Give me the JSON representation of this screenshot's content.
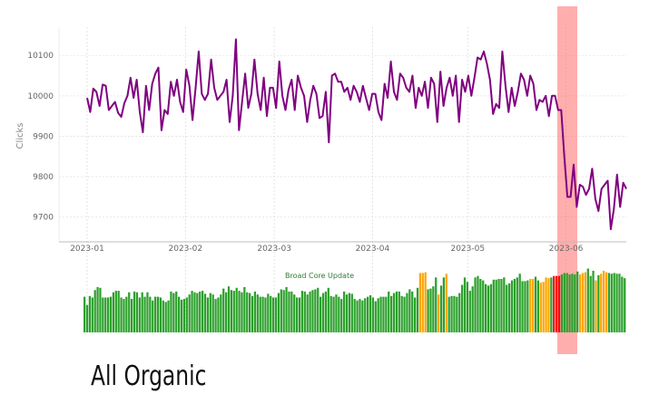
{
  "caption": "All Organic",
  "chart_data": [
    {
      "type": "line",
      "ylabel": "Clicks",
      "ylim": [
        9650,
        10170
      ],
      "yticks": [
        9700,
        9800,
        9900,
        10000,
        10100
      ],
      "xticks": [
        "2023-01",
        "2023-02",
        "2023-03",
        "2023-04",
        "2023-05",
        "2023-06"
      ],
      "x_start": "2023-01-01",
      "x_end": "2023-06-20",
      "grid": true,
      "line_color": "#800080",
      "highlight": {
        "start": "2023-06-01",
        "end": "2023-06-06",
        "color": "#ff6b6b"
      },
      "series": [
        {
          "values": [
            9995,
            9960,
            10018,
            10010,
            9975,
            10028,
            10025,
            9965,
            9975,
            9985,
            9958,
            9948,
            9982,
            10000,
            10045,
            9995,
            10040,
            9960,
            9910,
            10025,
            9965,
            10030,
            10055,
            10070,
            9915,
            9965,
            9955,
            10035,
            10000,
            10040,
            9985,
            9960,
            10065,
            10025,
            9940,
            10020,
            10110,
            10005,
            9990,
            10005,
            10090,
            10020,
            9990,
            10000,
            10010,
            10040,
            9935,
            10000,
            10140,
            9915,
            9985,
            10055,
            9970,
            10005,
            10090,
            10005,
            9965,
            10045,
            9950,
            10020,
            10020,
            9970,
            10085,
            10000,
            9965,
            10015,
            10040,
            9965,
            10050,
            10020,
            10000,
            9935,
            9990,
            10025,
            10005,
            9945,
            9950,
            10010,
            9885,
            10050,
            10055,
            10035,
            10035,
            10010,
            10020,
            9990,
            10025,
            10010,
            9985,
            10025,
            9995,
            9965,
            10005,
            10005,
            9960,
            9940,
            10030,
            9995,
            10085,
            10010,
            9990,
            10055,
            10045,
            10020,
            10010,
            10050,
            9970,
            10020,
            10000,
            10035,
            9970,
            10045,
            10030,
            9935,
            10060,
            9975,
            10020,
            10045,
            10000,
            10050,
            9935,
            10040,
            10010,
            10050,
            10000,
            10045,
            10095,
            10090,
            10110,
            10080,
            10040,
            9955,
            9980,
            9970,
            10110,
            10025,
            9960,
            10020,
            9975,
            10010,
            10055,
            10040,
            10000,
            10050,
            10030,
            9965,
            9990,
            9985,
            10000,
            9950,
            10000,
            10000,
            9965,
            9965,
            9850,
            9750,
            9750,
            9830,
            9725,
            9780,
            9775,
            9755,
            9770,
            9820,
            9745,
            9715,
            9770,
            9780,
            9790,
            9670,
            9720,
            9805,
            9725,
            9785,
            9770
          ]
        }
      ]
    },
    {
      "type": "bar",
      "annotation": "Broad Core Update",
      "colors": {
        "normal": "#2ca02c",
        "update": "#ffa500",
        "event": "#ff0000"
      },
      "note_levels": "values are relative bar levels (0-1)",
      "values": [
        0.48,
        0.37,
        0.49,
        0.47,
        0.57,
        0.61,
        0.6,
        0.47,
        0.47,
        0.47,
        0.48,
        0.54,
        0.56,
        0.56,
        0.47,
        0.45,
        0.48,
        0.54,
        0.45,
        0.55,
        0.54,
        0.47,
        0.54,
        0.48,
        0.54,
        0.48,
        0.43,
        0.48,
        0.48,
        0.47,
        0.43,
        0.41,
        0.43,
        0.55,
        0.53,
        0.55,
        0.48,
        0.44,
        0.45,
        0.47,
        0.51,
        0.56,
        0.54,
        0.53,
        0.55,
        0.56,
        0.52,
        0.47,
        0.53,
        0.51,
        0.45,
        0.47,
        0.51,
        0.59,
        0.54,
        0.62,
        0.57,
        0.56,
        0.6,
        0.56,
        0.54,
        0.61,
        0.54,
        0.53,
        0.49,
        0.55,
        0.51,
        0.48,
        0.48,
        0.47,
        0.52,
        0.49,
        0.47,
        0.47,
        0.53,
        0.58,
        0.57,
        0.61,
        0.55,
        0.55,
        0.51,
        0.47,
        0.47,
        0.56,
        0.55,
        0.51,
        0.55,
        0.57,
        0.58,
        0.6,
        0.48,
        0.53,
        0.55,
        0.6,
        0.49,
        0.48,
        0.51,
        0.48,
        0.45,
        0.55,
        0.51,
        0.53,
        0.52,
        0.45,
        0.43,
        0.45,
        0.43,
        0.46,
        0.48,
        0.5,
        0.47,
        0.42,
        0.46,
        0.48,
        0.48,
        0.48,
        0.55,
        0.49,
        0.53,
        0.55,
        0.55,
        0.49,
        0.48,
        0.53,
        0.58,
        0.55,
        0.47,
        0.6,
        0.8,
        0.8,
        0.81,
        0.58,
        0.59,
        0.62,
        0.74,
        0.51,
        0.63,
        0.74,
        0.79,
        0.48,
        0.49,
        0.49,
        0.48,
        0.53,
        0.64,
        0.74,
        0.68,
        0.56,
        0.62,
        0.74,
        0.76,
        0.72,
        0.7,
        0.65,
        0.63,
        0.65,
        0.71,
        0.71,
        0.72,
        0.72,
        0.74,
        0.64,
        0.66,
        0.7,
        0.72,
        0.74,
        0.79,
        0.69,
        0.69,
        0.7,
        0.72,
        0.72,
        0.75,
        0.7,
        0.67,
        0.68,
        0.74,
        0.73,
        0.74,
        0.76,
        0.76,
        0.76,
        0.78,
        0.8,
        0.8,
        0.78,
        0.79,
        0.78,
        0.82,
        0.78,
        0.8,
        0.81,
        0.86,
        0.76,
        0.83,
        0.7,
        0.77,
        0.79,
        0.83,
        0.81,
        0.8,
        0.79,
        0.8,
        0.79,
        0.79,
        0.75,
        0.73
      ],
      "orange_indices": [
        128,
        129,
        130,
        135,
        138,
        170,
        171,
        174,
        175,
        176,
        177,
        189,
        190,
        191,
        195,
        197,
        198,
        199
      ],
      "red_indices": [
        179,
        180,
        181
      ]
    }
  ]
}
